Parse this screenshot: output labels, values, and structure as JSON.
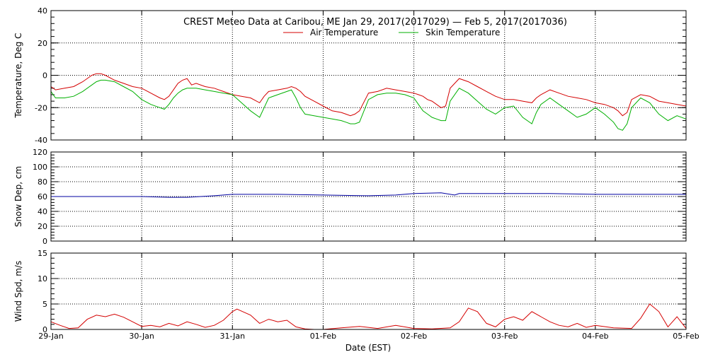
{
  "page": {
    "title": "CREST Meteo Data at Caribou, ME   Jan 29, 2017(2017029) — Feb  5, 2017(2017036)",
    "xlabel": "Date (EST)"
  },
  "colors": {
    "air": "#d40000",
    "skin": "#00b000",
    "snow": "#0000a0",
    "wind": "#d40000",
    "axis": "#000000"
  },
  "chart_data": [
    {
      "type": "line",
      "title": "",
      "ylabel": "Temperature, Deg C",
      "ylim": [
        -40,
        40
      ],
      "yticks": [
        -40,
        -20,
        0,
        20,
        40
      ],
      "xlim": [
        0,
        7
      ],
      "xtick_labels": [
        "29-Jan",
        "30-Jan",
        "31-Jan",
        "01-Feb",
        "02-Feb",
        "03-Feb",
        "04-Feb",
        "05-Feb"
      ],
      "grid": "dotted",
      "legend_placement": "top-right",
      "series": [
        {
          "name": "Air Temperature",
          "color": "#d40000",
          "x": [
            0,
            0.05,
            0.15,
            0.25,
            0.35,
            0.45,
            0.5,
            0.55,
            0.6,
            0.7,
            0.8,
            0.9,
            1.0,
            1.1,
            1.2,
            1.25,
            1.3,
            1.35,
            1.4,
            1.45,
            1.5,
            1.55,
            1.6,
            1.7,
            1.8,
            1.9,
            2.0,
            2.1,
            2.2,
            2.3,
            2.35,
            2.4,
            2.5,
            2.6,
            2.65,
            2.7,
            2.75,
            2.8,
            2.9,
            3.0,
            3.1,
            3.2,
            3.25,
            3.3,
            3.35,
            3.4,
            3.5,
            3.6,
            3.7,
            3.8,
            3.9,
            4.0,
            4.05,
            4.1,
            4.15,
            4.2,
            4.25,
            4.3,
            4.35,
            4.4,
            4.5,
            4.6,
            4.7,
            4.8,
            4.9,
            5.0,
            5.1,
            5.2,
            5.3,
            5.35,
            5.4,
            5.5,
            5.6,
            5.7,
            5.8,
            5.9,
            6.0,
            6.1,
            6.2,
            6.25,
            6.3,
            6.35,
            6.4,
            6.5,
            6.6,
            6.7,
            6.8,
            6.9,
            7.0
          ],
          "y": [
            -7,
            -9,
            -8,
            -7,
            -4,
            0,
            1,
            1,
            0,
            -3,
            -5,
            -7,
            -8,
            -11,
            -14,
            -15,
            -13,
            -9,
            -5,
            -3,
            -2,
            -6,
            -5,
            -7,
            -8,
            -10,
            -12,
            -13,
            -14,
            -17,
            -13,
            -10,
            -9,
            -8,
            -7,
            -8,
            -10,
            -13,
            -16,
            -19,
            -22,
            -23,
            -24,
            -25,
            -24,
            -22,
            -11,
            -10,
            -8,
            -9,
            -10,
            -11,
            -12,
            -13,
            -15,
            -16,
            -18,
            -20,
            -19,
            -8,
            -2,
            -4,
            -7,
            -10,
            -13,
            -15,
            -15,
            -16,
            -17,
            -14,
            -12,
            -9,
            -11,
            -13,
            -14,
            -15,
            -17,
            -18,
            -20,
            -22,
            -25,
            -23,
            -15,
            -12,
            -13,
            -16,
            -17,
            -18,
            -19
          ]
        },
        {
          "name": "Skin Temperature",
          "color": "#00b000",
          "x": [
            0,
            0.05,
            0.15,
            0.25,
            0.35,
            0.45,
            0.5,
            0.55,
            0.6,
            0.7,
            0.8,
            0.9,
            1.0,
            1.1,
            1.2,
            1.25,
            1.3,
            1.35,
            1.4,
            1.45,
            1.5,
            1.55,
            1.6,
            1.7,
            1.8,
            1.9,
            2.0,
            2.1,
            2.2,
            2.3,
            2.35,
            2.4,
            2.5,
            2.6,
            2.65,
            2.7,
            2.75,
            2.8,
            2.9,
            3.0,
            3.1,
            3.2,
            3.25,
            3.3,
            3.35,
            3.4,
            3.5,
            3.6,
            3.7,
            3.8,
            3.9,
            4.0,
            4.05,
            4.1,
            4.15,
            4.2,
            4.25,
            4.3,
            4.35,
            4.4,
            4.5,
            4.6,
            4.7,
            4.8,
            4.9,
            5.0,
            5.1,
            5.2,
            5.3,
            5.35,
            5.4,
            5.5,
            5.6,
            5.7,
            5.8,
            5.9,
            6.0,
            6.1,
            6.2,
            6.25,
            6.3,
            6.35,
            6.4,
            6.5,
            6.6,
            6.7,
            6.8,
            6.9,
            7.0
          ],
          "y": [
            -10,
            -14,
            -14,
            -13,
            -10,
            -6,
            -4,
            -3,
            -3,
            -4,
            -7,
            -10,
            -15,
            -18,
            -20,
            -21,
            -18,
            -14,
            -11,
            -9,
            -8,
            -8,
            -8,
            -9,
            -10,
            -11,
            -12,
            -17,
            -22,
            -26,
            -20,
            -14,
            -12,
            -10,
            -9,
            -14,
            -20,
            -24,
            -25,
            -26,
            -27,
            -28,
            -29,
            -30,
            -30,
            -29,
            -15,
            -12,
            -11,
            -11,
            -12,
            -14,
            -18,
            -22,
            -24,
            -26,
            -27,
            -28,
            -28,
            -16,
            -8,
            -11,
            -16,
            -21,
            -24,
            -20,
            -19,
            -26,
            -30,
            -23,
            -18,
            -14,
            -18,
            -22,
            -26,
            -24,
            -20,
            -24,
            -29,
            -33,
            -34,
            -30,
            -20,
            -14,
            -17,
            -24,
            -28,
            -25,
            -27
          ]
        }
      ]
    },
    {
      "type": "line",
      "title": "",
      "ylabel": "Snow Dep, cm",
      "ylim": [
        0,
        120
      ],
      "yticks": [
        0,
        20,
        40,
        60,
        80,
        100,
        120
      ],
      "xlim": [
        0,
        7
      ],
      "grid": "dotted",
      "series": [
        {
          "name": "",
          "color": "#0000a0",
          "x": [
            0,
            0.5,
            1.0,
            1.3,
            1.5,
            1.8,
            2.0,
            2.5,
            3.0,
            3.5,
            3.8,
            4.0,
            4.3,
            4.45,
            4.5,
            4.55,
            5.0,
            5.5,
            6.0,
            6.5,
            7.0
          ],
          "y": [
            60,
            60,
            60,
            59,
            59,
            61,
            63,
            63,
            62,
            61,
            62,
            64,
            65,
            62,
            64,
            64,
            64,
            64,
            63,
            63,
            63
          ]
        }
      ]
    },
    {
      "type": "line",
      "title": "",
      "ylabel": "Wind Spd, m/s",
      "ylim": [
        0,
        15
      ],
      "yticks": [
        0,
        5,
        10,
        15
      ],
      "xlim": [
        0,
        7
      ],
      "grid": "dotted",
      "series": [
        {
          "name": "",
          "color": "#d40000",
          "x": [
            0,
            0.1,
            0.2,
            0.3,
            0.4,
            0.5,
            0.6,
            0.7,
            0.8,
            0.9,
            1.0,
            1.1,
            1.2,
            1.3,
            1.4,
            1.5,
            1.6,
            1.7,
            1.8,
            1.9,
            2.0,
            2.05,
            2.1,
            2.2,
            2.3,
            2.4,
            2.5,
            2.6,
            2.7,
            2.8,
            2.9,
            3.0,
            3.2,
            3.4,
            3.6,
            3.8,
            4.0,
            4.2,
            4.4,
            4.5,
            4.6,
            4.7,
            4.8,
            4.9,
            5.0,
            5.1,
            5.2,
            5.3,
            5.4,
            5.5,
            5.6,
            5.7,
            5.8,
            5.9,
            6.0,
            6.2,
            6.4,
            6.5,
            6.6,
            6.7,
            6.8,
            6.9,
            7.0
          ],
          "y": [
            1.5,
            0.8,
            0.2,
            0.3,
            2.0,
            2.8,
            2.5,
            3.0,
            2.4,
            1.5,
            0.6,
            0.8,
            0.5,
            1.2,
            0.7,
            1.5,
            1.0,
            0.4,
            0.8,
            1.8,
            3.5,
            4.0,
            3.6,
            2.8,
            1.2,
            2.0,
            1.5,
            1.8,
            0.5,
            0.1,
            0.0,
            0.0,
            0.3,
            0.6,
            0.2,
            0.8,
            0.2,
            0.1,
            0.3,
            1.5,
            4.2,
            3.5,
            1.2,
            0.5,
            2.0,
            2.5,
            1.8,
            3.5,
            2.5,
            1.5,
            0.8,
            0.5,
            1.2,
            0.4,
            0.8,
            0.3,
            0.2,
            2.2,
            5.0,
            3.5,
            0.5,
            2.5,
            0.2
          ]
        }
      ]
    }
  ]
}
